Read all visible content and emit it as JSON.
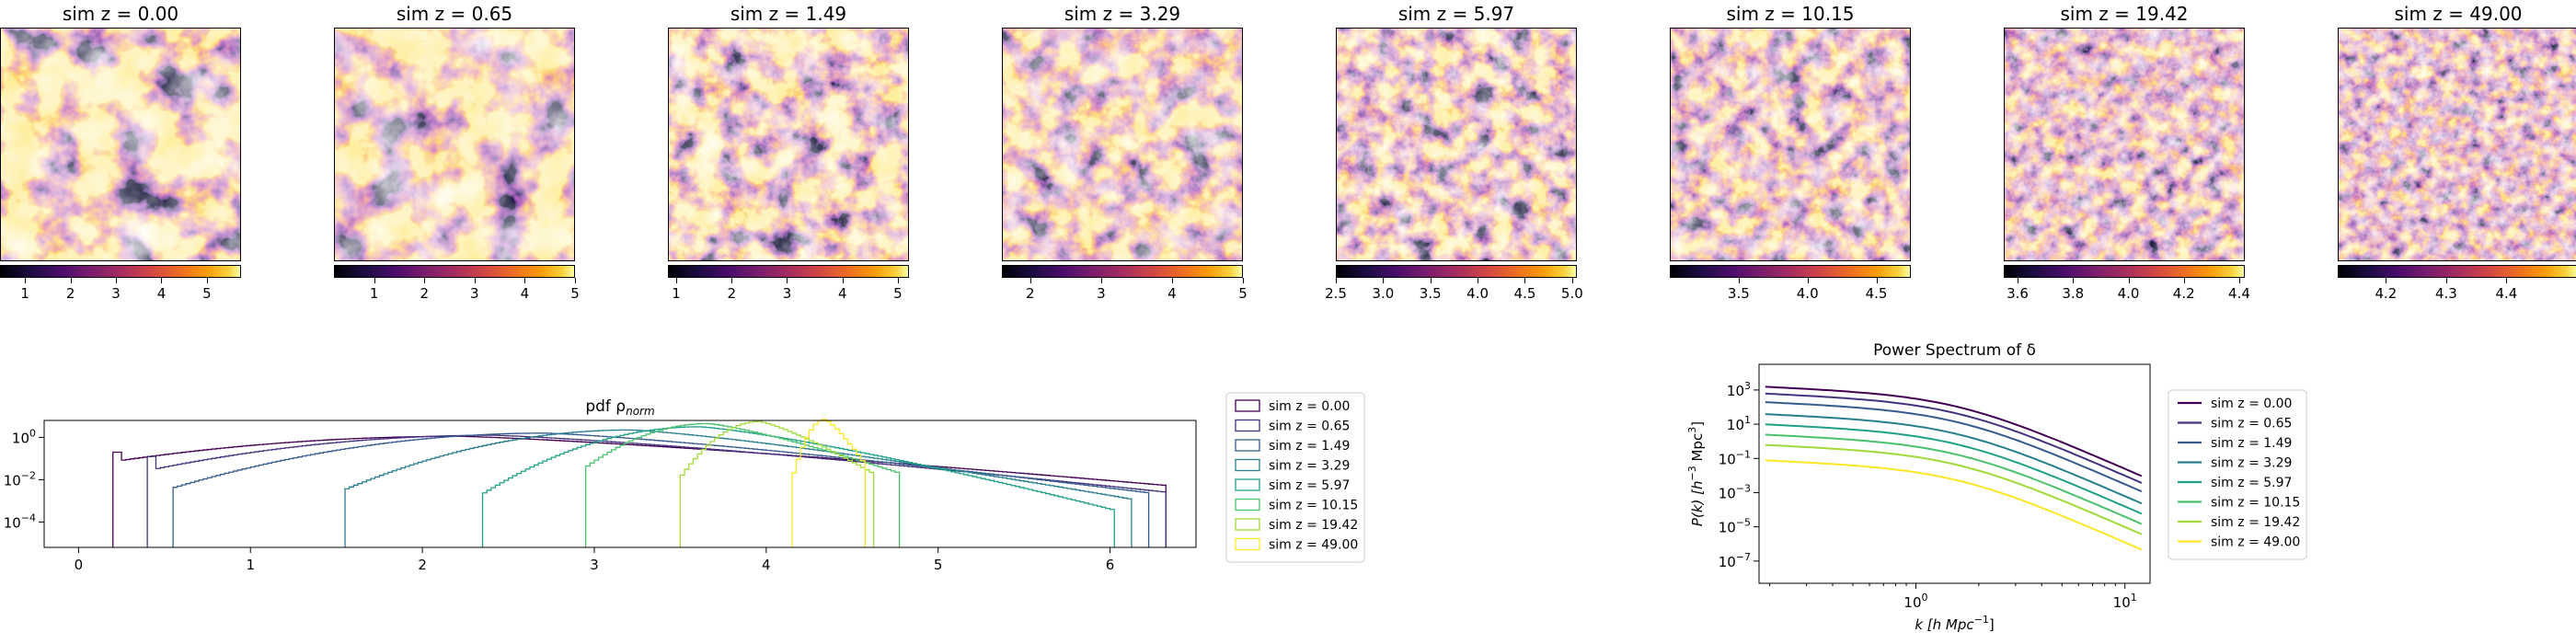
{
  "maps": [
    {
      "title": "sim z = 0.00",
      "ticks": [
        "1",
        "2",
        "3",
        "4",
        "5"
      ],
      "tick_values": [
        1,
        2,
        3,
        4,
        5
      ],
      "cbar_range": [
        0.45,
        5.75
      ],
      "contrast": 1.6,
      "freq": 2,
      "seed": 3
    },
    {
      "title": "sim z = 0.65",
      "ticks": [
        "1",
        "2",
        "3",
        "4",
        "5"
      ],
      "tick_values": [
        1,
        2,
        3,
        4,
        5
      ],
      "cbar_range": [
        0.2,
        5.0
      ],
      "contrast": 1.4,
      "freq": 2,
      "seed": 7
    },
    {
      "title": "sim z = 1.49",
      "ticks": [
        "1",
        "2",
        "3",
        "4",
        "5"
      ],
      "tick_values": [
        1,
        2,
        3,
        4,
        5
      ],
      "cbar_range": [
        0.85,
        5.2
      ],
      "contrast": 1.2,
      "freq": 3,
      "seed": 11
    },
    {
      "title": "sim z = 3.29",
      "ticks": [
        "2",
        "3",
        "4",
        "5"
      ],
      "tick_values": [
        2,
        3,
        4,
        5
      ],
      "cbar_range": [
        1.6,
        5.0
      ],
      "contrast": 1.0,
      "freq": 3,
      "seed": 17
    },
    {
      "title": "sim z = 5.97",
      "ticks": [
        "2.5",
        "3.0",
        "3.5",
        "4.0",
        "4.5",
        "5.0"
      ],
      "tick_values": [
        2.5,
        3.0,
        3.5,
        4.0,
        4.5,
        5.0
      ],
      "cbar_range": [
        2.5,
        5.05
      ],
      "contrast": 0.85,
      "freq": 4,
      "seed": 23
    },
    {
      "title": "sim z = 10.15",
      "ticks": [
        "3.5",
        "4.0",
        "4.5"
      ],
      "tick_values": [
        3.5,
        4.0,
        4.5
      ],
      "cbar_range": [
        3.0,
        4.75
      ],
      "contrast": 0.7,
      "freq": 4,
      "seed": 29
    },
    {
      "title": "sim z = 19.42",
      "ticks": [
        "3.6",
        "3.8",
        "4.0",
        "4.2",
        "4.4"
      ],
      "tick_values": [
        3.6,
        3.8,
        4.0,
        4.2,
        4.4
      ],
      "cbar_range": [
        3.55,
        4.42
      ],
      "contrast": 0.55,
      "freq": 5,
      "seed": 31
    },
    {
      "title": "sim z = 49.00",
      "ticks": [
        "4.2",
        "4.3",
        "4.4"
      ],
      "tick_values": [
        4.2,
        4.3,
        4.4
      ],
      "cbar_range": [
        4.12,
        4.52
      ],
      "contrast": 0.45,
      "freq": 6,
      "seed": 37
    }
  ],
  "chart_data": [
    {
      "type": "histogram",
      "title": "pdf ρnorm",
      "title_base": "pdf ρ",
      "title_sub": "norm",
      "xlim": [
        -0.2,
        6.5
      ],
      "ylog": true,
      "ylim_log": [
        -5.2,
        0.8
      ],
      "xticks": [
        0,
        1,
        2,
        3,
        4,
        5,
        6
      ],
      "xtick_labels": [
        "0",
        "1",
        "2",
        "3",
        "4",
        "5",
        "6"
      ],
      "yticks": [
        0,
        -2,
        -4
      ],
      "ytick_base": "10",
      "ytick_exps": [
        "0",
        "−2",
        "−4"
      ],
      "legend_loc": "outside right",
      "series": [
        {
          "name": "sim z = 0.00",
          "color": "#440154",
          "min": 0.2,
          "max": 6.3,
          "peak": 2.2,
          "width": 1.3,
          "peak_log": 0.05
        },
        {
          "name": "sim z = 0.65",
          "color": "#46327e",
          "min": 0.4,
          "max": 6.3,
          "peak": 2.4,
          "width": 1.1,
          "peak_log": 0.1
        },
        {
          "name": "sim z = 1.49",
          "color": "#365c8d",
          "min": 0.55,
          "max": 6.2,
          "peak": 2.7,
          "width": 0.95,
          "peak_log": 0.2
        },
        {
          "name": "sim z = 3.29",
          "color": "#277f8e",
          "min": 1.55,
          "max": 6.1,
          "peak": 3.2,
          "width": 0.7,
          "peak_log": 0.35
        },
        {
          "name": "sim z = 5.97",
          "color": "#1fa187",
          "min": 2.35,
          "max": 6.0,
          "peak": 3.6,
          "width": 0.5,
          "peak_log": 0.5
        },
        {
          "name": "sim z = 10.15",
          "color": "#4ac16d",
          "min": 2.95,
          "max": 4.75,
          "peak": 3.65,
          "width": 0.35,
          "peak_log": 0.65
        },
        {
          "name": "sim z = 19.42",
          "color": "#a0da39",
          "min": 3.5,
          "max": 4.6,
          "peak": 3.95,
          "width": 0.2,
          "peak_log": 0.75
        },
        {
          "name": "sim z = 49.00",
          "color": "#fde725",
          "min": 4.15,
          "max": 4.55,
          "peak": 4.33,
          "width": 0.08,
          "peak_log": 0.85
        }
      ]
    },
    {
      "type": "line",
      "title": "Power Spectrum of δ",
      "xlabel_parts": [
        "k [h Mpc",
        "−1",
        "]"
      ],
      "ylabel_parts": [
        "P(k) [h",
        "−3",
        " Mpc",
        "3",
        "]"
      ],
      "xlog": true,
      "ylog": true,
      "xlim_log": [
        -0.75,
        1.12
      ],
      "ylim_log": [
        -8.3,
        4.5
      ],
      "xticks_log": [
        0,
        1
      ],
      "xtick_labels": [
        [
          "10",
          "0"
        ],
        [
          "10",
          "1"
        ]
      ],
      "yticks_log": [
        3,
        1,
        -1,
        -3,
        -5,
        -7
      ],
      "ytick_labels": [
        [
          "10",
          "3"
        ],
        [
          "10",
          "1"
        ],
        [
          "10",
          "−1"
        ],
        [
          "10",
          "−3"
        ],
        [
          "10",
          "−5"
        ],
        [
          "10",
          "−7"
        ]
      ],
      "legend_loc": "outside right",
      "series": [
        {
          "name": "sim z = 0.00",
          "color": "#440154",
          "A": 3.2
        },
        {
          "name": "sim z = 0.65",
          "color": "#46327e",
          "A": 2.8
        },
        {
          "name": "sim z = 1.49",
          "color": "#365c8d",
          "A": 2.3
        },
        {
          "name": "sim z = 3.29",
          "color": "#277f8e",
          "A": 1.6
        },
        {
          "name": "sim z = 5.97",
          "color": "#1fa187",
          "A": 1.0
        },
        {
          "name": "sim z = 10.15",
          "color": "#4ac16d",
          "A": 0.4
        },
        {
          "name": "sim z = 19.42",
          "color": "#a0da39",
          "A": -0.2
        },
        {
          "name": "sim z = 49.00",
          "color": "#fde725",
          "A": -1.1
        }
      ]
    }
  ]
}
